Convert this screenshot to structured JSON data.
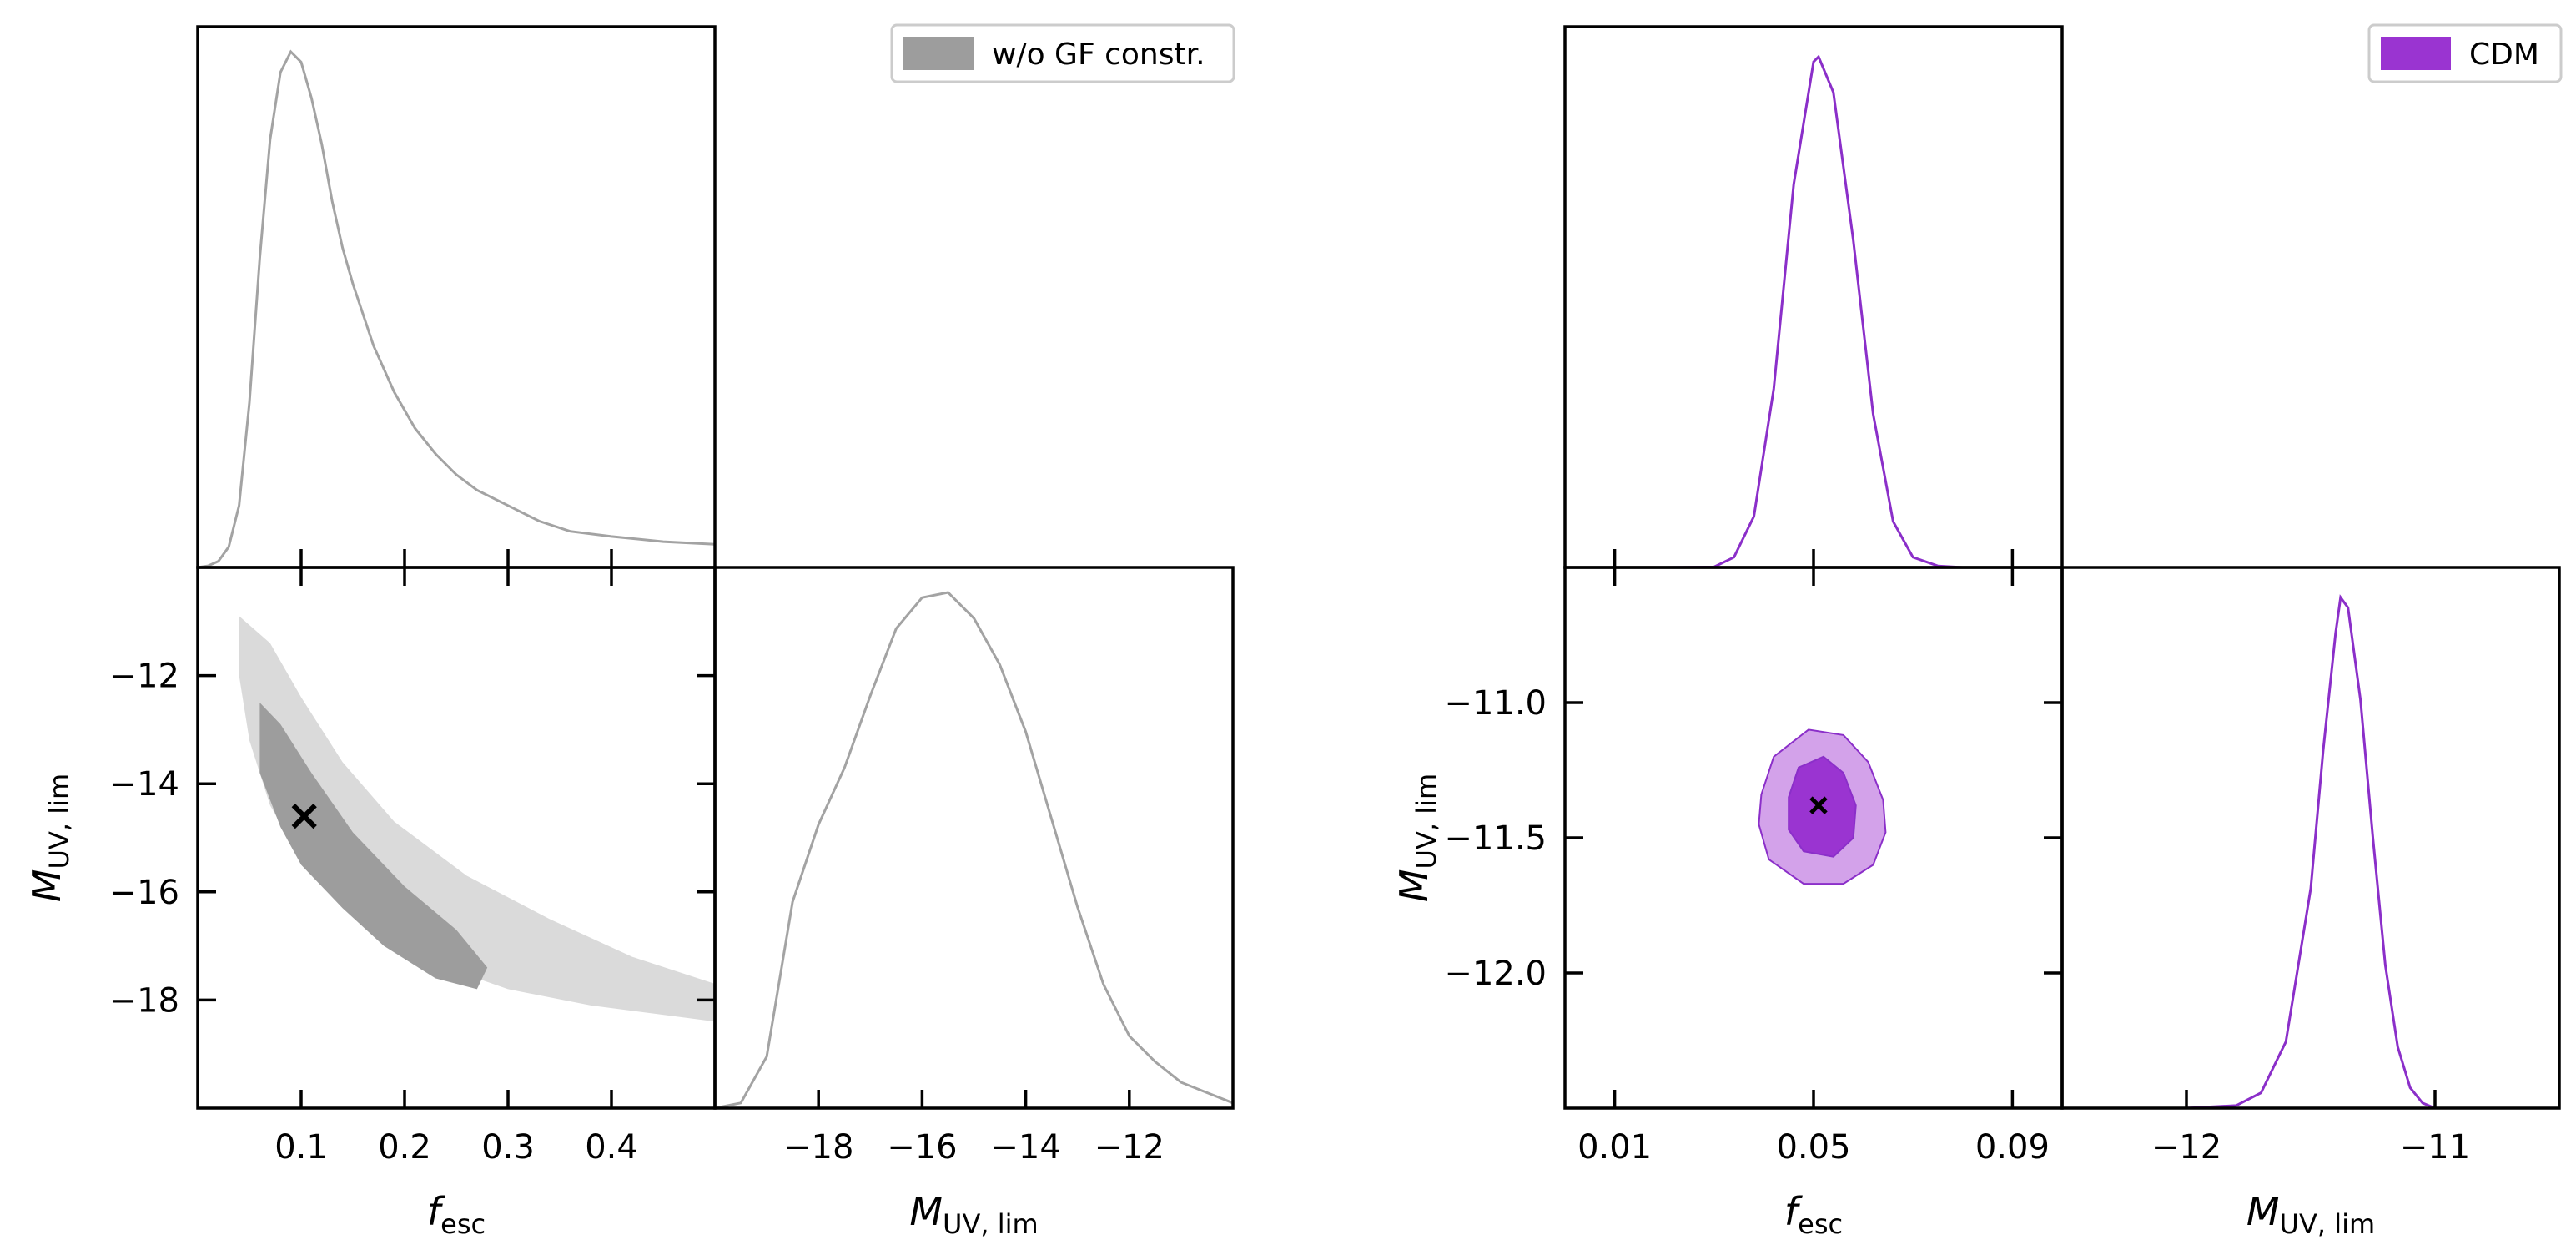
{
  "chart_data": [
    {
      "type": "corner",
      "name": "w/o GF constraint",
      "legend": {
        "label": "w/o GF constr.",
        "placement": "top-right"
      },
      "colors": {
        "line": "#a3a3a3",
        "inner": "#9d9d9d",
        "outer": "#dadada",
        "marker": "#000000"
      },
      "parameters": {
        "fesc": {
          "label": "f",
          "sub": "esc",
          "range": [
            0.0,
            0.5
          ],
          "ticks": [
            0.1,
            0.2,
            0.3,
            0.4
          ],
          "tick_labels": [
            "0.1",
            "0.2",
            "0.3",
            "0.4"
          ]
        },
        "muv": {
          "label": "M",
          "sub": "UV, lim",
          "range": [
            -20,
            -10
          ],
          "x_ticks": [
            -18,
            -16,
            -14,
            -12
          ],
          "x_tick_labels": [
            "−18",
            "−16",
            "−14",
            "−12"
          ],
          "y_ticks": [
            -12,
            -14,
            -16,
            -18
          ],
          "y_tick_labels": [
            "−12",
            "−14",
            "−16",
            "−18"
          ]
        }
      },
      "marginal_fesc": {
        "x": [
          0.0,
          0.01,
          0.02,
          0.03,
          0.04,
          0.05,
          0.06,
          0.07,
          0.08,
          0.09,
          0.1,
          0.11,
          0.12,
          0.13,
          0.14,
          0.15,
          0.17,
          0.19,
          0.21,
          0.23,
          0.25,
          0.27,
          0.3,
          0.33,
          0.36,
          0.4,
          0.45,
          0.5
        ],
        "y": [
          0.0,
          0.003,
          0.012,
          0.04,
          0.12,
          0.32,
          0.6,
          0.83,
          0.96,
          1.0,
          0.98,
          0.91,
          0.82,
          0.71,
          0.62,
          0.55,
          0.43,
          0.34,
          0.27,
          0.22,
          0.18,
          0.15,
          0.12,
          0.09,
          0.07,
          0.06,
          0.05,
          0.045
        ]
      },
      "marginal_muv": {
        "x": [
          -20,
          -19.5,
          -19,
          -18.5,
          -18,
          -17.5,
          -17,
          -16.5,
          -16,
          -15.5,
          -15,
          -14.5,
          -14,
          -13.5,
          -13,
          -12.5,
          -12,
          -11.5,
          -11,
          -10.5,
          -10
        ],
        "y": [
          0.0,
          0.01,
          0.1,
          0.4,
          0.55,
          0.66,
          0.8,
          0.93,
          0.99,
          1.0,
          0.95,
          0.86,
          0.73,
          0.56,
          0.39,
          0.24,
          0.14,
          0.09,
          0.05,
          0.03,
          0.01
        ]
      },
      "contour_outer": [
        [
          0.04,
          -10.9
        ],
        [
          0.07,
          -11.4
        ],
        [
          0.1,
          -12.4
        ],
        [
          0.14,
          -13.6
        ],
        [
          0.19,
          -14.7
        ],
        [
          0.26,
          -15.7
        ],
        [
          0.34,
          -16.5
        ],
        [
          0.42,
          -17.2
        ],
        [
          0.5,
          -17.7
        ],
        [
          0.5,
          -18.4
        ],
        [
          0.46,
          -18.3
        ],
        [
          0.38,
          -18.1
        ],
        [
          0.3,
          -17.8
        ],
        [
          0.24,
          -17.4
        ],
        [
          0.18,
          -16.8
        ],
        [
          0.14,
          -16.2
        ],
        [
          0.1,
          -15.4
        ],
        [
          0.07,
          -14.4
        ],
        [
          0.05,
          -13.2
        ],
        [
          0.04,
          -12.0
        ]
      ],
      "contour_inner": [
        [
          0.06,
          -12.5
        ],
        [
          0.08,
          -12.9
        ],
        [
          0.11,
          -13.8
        ],
        [
          0.15,
          -14.9
        ],
        [
          0.2,
          -15.9
        ],
        [
          0.25,
          -16.7
        ],
        [
          0.28,
          -17.4
        ],
        [
          0.27,
          -17.8
        ],
        [
          0.23,
          -17.6
        ],
        [
          0.18,
          -17.0
        ],
        [
          0.14,
          -16.3
        ],
        [
          0.1,
          -15.5
        ],
        [
          0.08,
          -14.8
        ],
        [
          0.06,
          -13.8
        ],
        [
          0.06,
          -13.0
        ]
      ],
      "best_fit": {
        "fesc": 0.103,
        "muv": -14.6
      }
    },
    {
      "type": "corner",
      "name": "CDM",
      "legend": {
        "label": "CDM",
        "placement": "top-right"
      },
      "colors": {
        "line": "#8b2fc9",
        "inner": "#9a34d1",
        "outer": "#d3a2ea",
        "marker": "#000000"
      },
      "parameters": {
        "fesc": {
          "label": "f",
          "sub": "esc",
          "range": [
            0.0,
            0.1
          ],
          "ticks": [
            0.01,
            0.05,
            0.09
          ],
          "tick_labels": [
            "0.01",
            "0.05",
            "0.09"
          ]
        },
        "muv": {
          "label": "M",
          "sub": "UV, lim",
          "range": [
            -12.5,
            -10.5
          ],
          "x_ticks": [
            -12,
            -11
          ],
          "x_tick_labels": [
            "−12",
            "−11"
          ],
          "y_ticks": [
            -11.0,
            -11.5,
            -12.0
          ],
          "y_tick_labels": [
            "−11.0",
            "−11.5",
            "−12.0"
          ]
        }
      },
      "marginal_fesc": {
        "x": [
          0.0,
          0.01,
          0.02,
          0.03,
          0.034,
          0.038,
          0.042,
          0.046,
          0.05,
          0.051,
          0.054,
          0.058,
          0.062,
          0.066,
          0.07,
          0.075,
          0.08,
          0.09,
          0.1
        ],
        "y": [
          0.0,
          0.0,
          0.0,
          0.001,
          0.02,
          0.1,
          0.35,
          0.75,
          0.99,
          1.0,
          0.93,
          0.64,
          0.3,
          0.09,
          0.02,
          0.003,
          0.0,
          0.0,
          0.0
        ]
      },
      "marginal_muv": {
        "x": [
          -12.5,
          -12.0,
          -11.8,
          -11.7,
          -11.6,
          -11.5,
          -11.45,
          -11.4,
          -11.38,
          -11.35,
          -11.3,
          -11.25,
          -11.2,
          -11.15,
          -11.1,
          -11.05,
          -11.0,
          -10.5
        ],
        "y": [
          0.0,
          0.0,
          0.005,
          0.03,
          0.13,
          0.43,
          0.7,
          0.93,
          1.0,
          0.98,
          0.8,
          0.53,
          0.28,
          0.12,
          0.04,
          0.01,
          0.0,
          0.0
        ]
      },
      "contour_outer": [
        [
          0.0395,
          -11.34
        ],
        [
          0.042,
          -11.2
        ],
        [
          0.049,
          -11.1
        ],
        [
          0.056,
          -11.12
        ],
        [
          0.061,
          -11.22
        ],
        [
          0.064,
          -11.36
        ],
        [
          0.0645,
          -11.48
        ],
        [
          0.062,
          -11.6
        ],
        [
          0.056,
          -11.67
        ],
        [
          0.048,
          -11.67
        ],
        [
          0.041,
          -11.58
        ],
        [
          0.039,
          -11.45
        ]
      ],
      "contour_inner": [
        [
          0.045,
          -11.35
        ],
        [
          0.047,
          -11.24
        ],
        [
          0.052,
          -11.2
        ],
        [
          0.056,
          -11.26
        ],
        [
          0.0585,
          -11.38
        ],
        [
          0.058,
          -11.5
        ],
        [
          0.054,
          -11.57
        ],
        [
          0.048,
          -11.55
        ],
        [
          0.045,
          -11.47
        ]
      ],
      "best_fit": {
        "fesc": 0.051,
        "muv": -11.38
      }
    }
  ]
}
